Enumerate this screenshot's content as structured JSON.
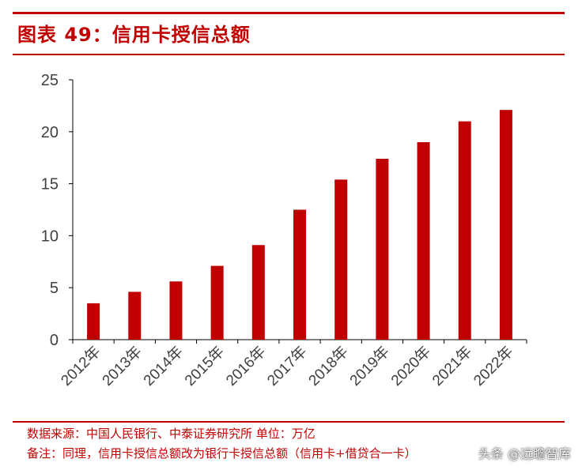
{
  "title": "图表 49：信用卡授信总额",
  "chart_data": {
    "type": "bar",
    "categories": [
      "2012年",
      "2013年",
      "2014年",
      "2015年",
      "2016年",
      "2017年",
      "2018年",
      "2019年",
      "2020年",
      "2021年",
      "2022年"
    ],
    "values": [
      3.5,
      4.6,
      5.6,
      7.1,
      9.1,
      12.5,
      15.4,
      17.4,
      19.0,
      21.0,
      22.1
    ],
    "ylim": [
      0,
      25
    ],
    "yticks": [
      0,
      5,
      10,
      15,
      20,
      25
    ],
    "xlabel": "",
    "ylabel": "",
    "grid": false,
    "bar_color": "#c00000"
  },
  "notes": {
    "source": "数据来源：中国人民银行、中泰证券研究所 单位：万亿",
    "remark": "备注：同理，信用卡授信总额改为银行卡授信总额（信用卡+借贷合一卡）"
  },
  "watermark": {
    "icon": "at-icon",
    "text": "头条 @远瞻智库"
  }
}
